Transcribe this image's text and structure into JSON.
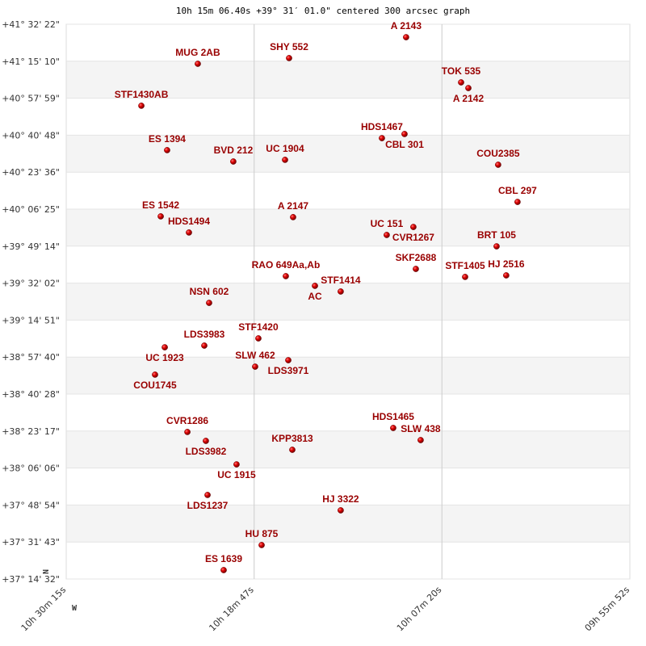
{
  "chart_data": {
    "type": "scatter",
    "title": "10h 15m 06.40s +39° 31′ 01.0\" centered 300 arcsec graph",
    "xlabel": "",
    "ylabel": "",
    "x_axis": "right ascension (hours), decreasing to the right",
    "xlim": [
      10.5042,
      9.9311
    ],
    "ylim": [
      37.2422,
      41.5394
    ],
    "x_ticks": [
      {
        "value": 10.5042,
        "label": "10h 30m 15s"
      },
      {
        "value": 10.3131,
        "label": "10h 18m 47s"
      },
      {
        "value": 10.1222,
        "label": "10h 07m 20s"
      },
      {
        "value": 9.9311,
        "label": "09h 55m 52s"
      }
    ],
    "y_ticks": [
      "+41° 32' 22\"",
      "+41° 15' 10\"",
      "+40° 57' 59\"",
      "+40° 40' 48\"",
      "+40° 23' 36\"",
      "+40° 06' 25\"",
      "+39° 49' 14\"",
      "+39° 32' 02\"",
      "+39° 14' 51\"",
      "+38° 57' 40\"",
      "+38° 40' 28\"",
      "+38° 23' 17\"",
      "+38° 06' 06\"",
      "+37° 48' 54\"",
      "+37° 31' 43\"",
      "+37° 14' 32\""
    ],
    "grid": true,
    "banding": "alternating horizontal bands",
    "compass": {
      "north": "N",
      "west": "W"
    },
    "colors": {
      "label": "#990000",
      "point": "#dd0000",
      "band": "#f4f4f4",
      "grid": "#cccccc"
    },
    "points": [
      {
        "name": "MUG  2AB",
        "ra": 10.3704,
        "dec": 41.233
      },
      {
        "name": "SHY 552",
        "ra": 10.2776,
        "dec": 41.277
      },
      {
        "name": "A  2143",
        "ra": 10.1586,
        "dec": 41.439
      },
      {
        "name": "TOK 535",
        "ra": 10.1027,
        "dec": 41.089
      },
      {
        "name": "A  2142",
        "ra": 10.0953,
        "dec": 41.045
      },
      {
        "name": "STF1430AB",
        "ra": 10.4278,
        "dec": 40.908
      },
      {
        "name": "HDS1467",
        "ra": 10.1832,
        "dec": 40.657
      },
      {
        "name": "CBL 301",
        "ra": 10.1602,
        "dec": 40.689
      },
      {
        "name": "ES 1394",
        "ra": 10.4016,
        "dec": 40.564
      },
      {
        "name": "BVD 212",
        "ra": 10.3343,
        "dec": 40.476
      },
      {
        "name": "UC 1904",
        "ra": 10.2817,
        "dec": 40.489
      },
      {
        "name": "COU2385",
        "ra": 10.065,
        "dec": 40.451
      },
      {
        "name": "CBL 297",
        "ra": 10.0453,
        "dec": 40.163
      },
      {
        "name": "ES 1542",
        "ra": 10.4081,
        "dec": 40.051
      },
      {
        "name": "A  2147",
        "ra": 10.2735,
        "dec": 40.045
      },
      {
        "name": "HDS1494",
        "ra": 10.3794,
        "dec": 39.926
      },
      {
        "name": "UC  151",
        "ra": 10.1783,
        "dec": 39.907
      },
      {
        "name": "CVR1267",
        "ra": 10.1512,
        "dec": 39.969
      },
      {
        "name": "BRT 105",
        "ra": 10.0666,
        "dec": 39.819
      },
      {
        "name": "SKF2688",
        "ra": 10.1487,
        "dec": 39.644
      },
      {
        "name": "RAO 649Aa,Ab",
        "ra": 10.2809,
        "dec": 39.588
      },
      {
        "name": "AC",
        "ra": 10.2513,
        "dec": 39.513
      },
      {
        "name": "STF1414",
        "ra": 10.2251,
        "dec": 39.469
      },
      {
        "name": "STF1405",
        "ra": 10.0986,
        "dec": 39.582
      },
      {
        "name": "HJ 2516",
        "ra": 10.0568,
        "dec": 39.594
      },
      {
        "name": "NSN 602",
        "ra": 10.3589,
        "dec": 39.381
      },
      {
        "name": "STF1420",
        "ra": 10.3088,
        "dec": 39.106
      },
      {
        "name": "LDS3983",
        "ra": 10.3638,
        "dec": 39.05
      },
      {
        "name": "UC 1923",
        "ra": 10.404,
        "dec": 39.037
      },
      {
        "name": "SLW 462",
        "ra": 10.3121,
        "dec": 38.887
      },
      {
        "name": "LDS3971",
        "ra": 10.2784,
        "dec": 38.937
      },
      {
        "name": "COU1745",
        "ra": 10.4139,
        "dec": 38.825
      },
      {
        "name": "HDS1465",
        "ra": 10.1717,
        "dec": 38.412
      },
      {
        "name": "SLW 438",
        "ra": 10.1438,
        "dec": 38.318
      },
      {
        "name": "CVR1286",
        "ra": 10.381,
        "dec": 38.381
      },
      {
        "name": "LDS3982",
        "ra": 10.3622,
        "dec": 38.312
      },
      {
        "name": "KPP3813",
        "ra": 10.2743,
        "dec": 38.243
      },
      {
        "name": "UC 1915",
        "ra": 10.331,
        "dec": 38.13
      },
      {
        "name": "LDS1237",
        "ra": 10.3605,
        "dec": 37.893
      },
      {
        "name": "HJ 3322",
        "ra": 10.2251,
        "dec": 37.774
      },
      {
        "name": "HU  875",
        "ra": 10.3055,
        "dec": 37.505
      },
      {
        "name": "ES 1639",
        "ra": 10.3441,
        "dec": 37.311
      }
    ]
  }
}
